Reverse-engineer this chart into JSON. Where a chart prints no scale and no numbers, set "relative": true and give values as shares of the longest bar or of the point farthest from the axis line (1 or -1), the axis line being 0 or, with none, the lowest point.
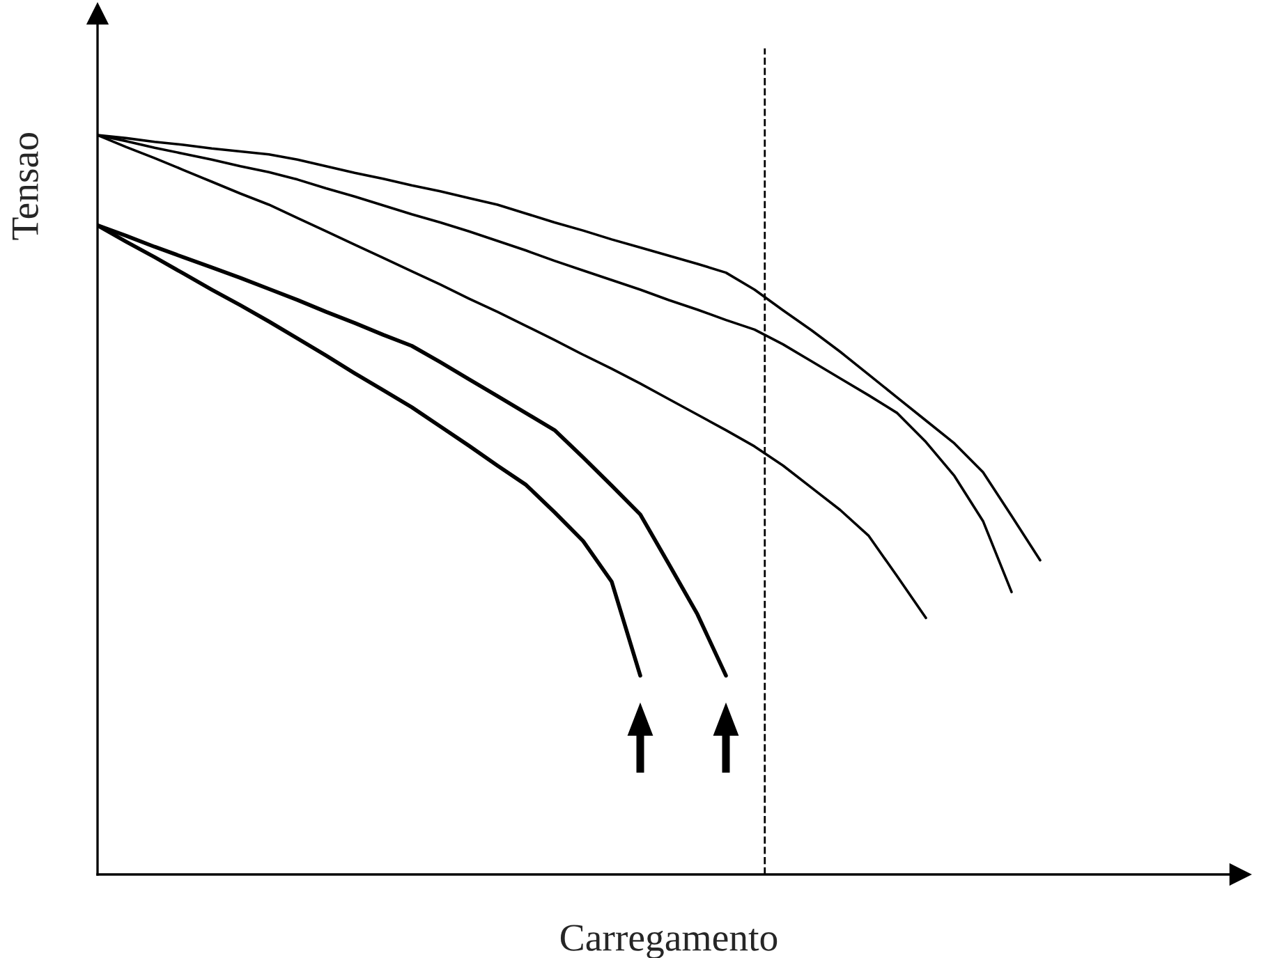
{
  "chart_data": {
    "type": "line",
    "relative": true,
    "xlabel": "Carregamento",
    "ylabel": "Tensao",
    "categories": [
      null,
      null,
      null,
      null,
      null,
      null,
      null,
      null,
      null,
      null,
      null,
      null,
      null,
      null,
      null,
      null,
      null,
      null,
      null,
      null,
      null,
      null,
      null,
      null,
      null,
      null,
      null,
      null,
      null,
      null,
      null,
      null,
      null,
      null,
      null
    ],
    "series": [
      {
        "color": "#000000",
        "values": [
          1,
          0.996,
          0.991,
          0.987,
          0.982,
          0.978,
          0.974,
          0.967,
          0.958,
          0.949,
          0.941,
          0.932,
          0.924,
          0.915,
          0.906,
          0.894,
          0.882,
          0.871,
          0.859,
          0.848,
          0.837,
          0.826,
          0.814,
          0.791,
          0.763,
          0.736,
          0.707,
          0.676,
          0.645,
          0.614,
          0.583,
          0.544,
          0.485,
          0.425,
          null
        ]
      },
      {
        "color": "#000000",
        "values": [
          1,
          0.992,
          0.983,
          0.975,
          0.967,
          0.958,
          0.95,
          0.94,
          0.928,
          0.917,
          0.905,
          0.893,
          0.882,
          0.87,
          0.857,
          0.844,
          0.83,
          0.817,
          0.804,
          0.791,
          0.777,
          0.764,
          0.75,
          0.737,
          0.717,
          0.694,
          0.671,
          0.648,
          0.624,
          0.585,
          0.539,
          0.478,
          0.382,
          null,
          null
        ]
      },
      {
        "color": "#000000",
        "values": [
          1,
          0.984,
          0.969,
          0.953,
          0.937,
          0.921,
          0.906,
          0.888,
          0.87,
          0.852,
          0.834,
          0.816,
          0.798,
          0.779,
          0.761,
          0.742,
          0.723,
          0.703,
          0.684,
          0.664,
          0.643,
          0.622,
          0.601,
          0.579,
          0.553,
          0.523,
          0.493,
          0.458,
          0.403,
          0.347,
          null,
          null,
          null,
          null,
          null
        ]
      },
      {
        "color": "#000000",
        "values": [
          0.878,
          0.864,
          0.849,
          0.835,
          0.821,
          0.807,
          0.792,
          0.777,
          0.761,
          0.746,
          0.73,
          0.715,
          0.693,
          0.67,
          0.647,
          0.624,
          0.601,
          0.564,
          0.526,
          0.487,
          0.42,
          0.352,
          0.269,
          null,
          null,
          null,
          null,
          null,
          null,
          null,
          null,
          null,
          null,
          null,
          null
        ]
      },
      {
        "color": "#000000",
        "values": [
          0.878,
          0.856,
          0.835,
          0.813,
          0.791,
          0.77,
          0.748,
          0.725,
          0.702,
          0.678,
          0.655,
          0.632,
          0.606,
          0.58,
          0.553,
          0.527,
          0.49,
          0.451,
          0.396,
          0.269,
          null,
          null,
          null,
          null,
          null,
          null,
          null,
          null,
          null,
          null,
          null,
          null,
          null,
          null,
          null
        ]
      }
    ]
  }
}
